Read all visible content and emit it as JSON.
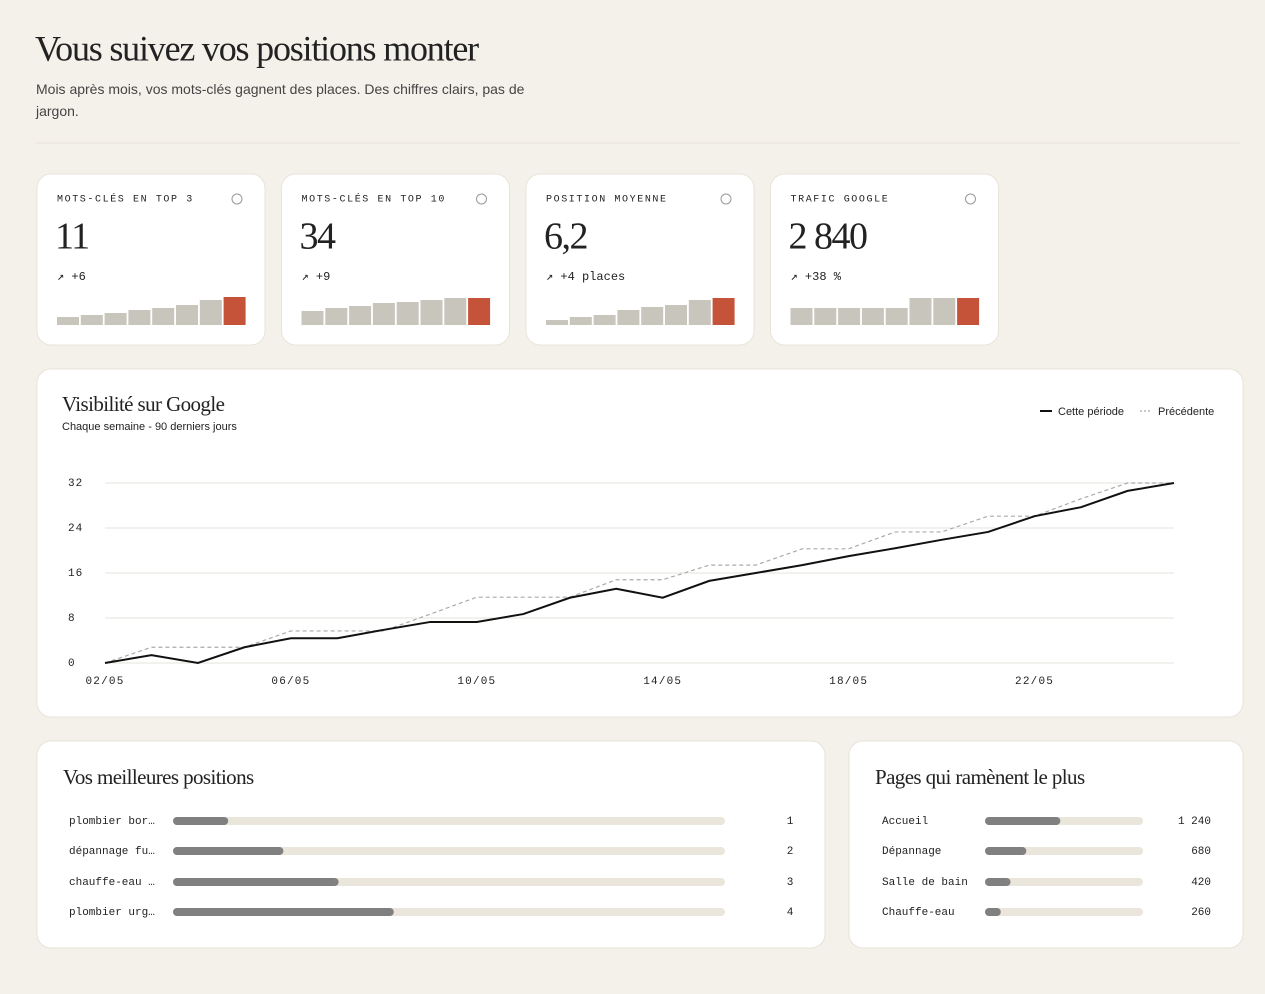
{
  "header": {
    "title": "Vous suivez vos positions monter",
    "subtitle": "Mois après mois, vos mots-clés gagnent des places. Des chiffres clairs, pas de jargon."
  },
  "kpis": [
    {
      "label": "MOTS-CLÉS EN TOP 3",
      "value": "11",
      "delta": "↗ +6",
      "spark": {
        "ylim": [
          0,
          30
        ],
        "values": [
          8,
          10,
          12,
          15,
          17,
          20,
          25,
          28
        ],
        "color": "#c8c5bd",
        "highlight": "#c4533a"
      }
    },
    {
      "label": "MOTS-CLÉS EN TOP 10",
      "value": "34",
      "delta": "↗ +9",
      "spark": {
        "ylim": [
          0,
          30
        ],
        "values": [
          14,
          17,
          19,
          22,
          23,
          25,
          27,
          27
        ],
        "color": "#c8c5bd",
        "highlight": "#c4533a"
      }
    },
    {
      "label": "POSITION MOYENNE",
      "value": "6,2",
      "delta": "↗ +4 places",
      "spark": {
        "ylim": [
          0,
          30
        ],
        "values": [
          5,
          8,
          10,
          15,
          18,
          20,
          25,
          27
        ],
        "color": "#c8c5bd",
        "highlight": "#c4533a"
      }
    },
    {
      "label": "TRAFIC GOOGLE",
      "value": "2 840",
      "delta": "↗ +38 %",
      "spark": {
        "ylim": [
          0,
          30
        ],
        "values": [
          17,
          17,
          17,
          17,
          17,
          27,
          27,
          27
        ],
        "color": "#c8c5bd",
        "highlight": "#c4533a"
      }
    }
  ],
  "chart_data": {
    "type": "line",
    "title": "Visibilité sur Google",
    "subtitle": "Chaque semaine - 90 derniers jours",
    "categories": [
      "02/05",
      null,
      null,
      null,
      "06/05",
      null,
      null,
      null,
      "10/05",
      null,
      null,
      null,
      "14/05",
      null,
      null,
      null,
      "18/05",
      null,
      null,
      null,
      "22/05",
      null,
      null,
      null
    ],
    "series": [
      {
        "name": "Cette période",
        "color": "#111111",
        "dashed": false,
        "values": [
          0,
          1.4,
          0,
          2.8,
          4.4,
          4.4,
          5.9,
          7.3,
          7.3,
          8.7,
          11.6,
          13.2,
          11.6,
          14.6,
          16.0,
          17.4,
          19.0,
          20.4,
          21.9,
          23.3,
          26.1,
          27.7,
          30.6,
          32
        ]
      },
      {
        "name": "Précédente",
        "color": "#aaaaaa",
        "dashed": true,
        "values": [
          0,
          2.8,
          2.8,
          2.8,
          5.7,
          5.7,
          5.7,
          8.7,
          11.7,
          11.7,
          11.7,
          14.8,
          14.8,
          17.4,
          17.4,
          20.3,
          20.3,
          23.3,
          23.3,
          26.1,
          26.1,
          29.2,
          32,
          32
        ]
      }
    ],
    "ylim": [
      0,
      32
    ],
    "yticks": [
      0,
      8,
      16,
      24,
      32
    ],
    "grid": true,
    "legend": "top-right"
  },
  "positions": {
    "title": "Vos meilleures positions",
    "xlim": [
      0,
      10
    ],
    "rows": [
      {
        "name": "plombier bor…",
        "value": 1
      },
      {
        "name": "dépannage fu…",
        "value": 2
      },
      {
        "name": "chauffe-eau …",
        "value": 3
      },
      {
        "name": "plombier urg…",
        "value": 4
      }
    ]
  },
  "pages": {
    "title": "Pages qui ramènent le plus",
    "xlim": [
      0,
      2600
    ],
    "rows": [
      {
        "name": "Accueil",
        "value": 1240,
        "value_label": "1 240"
      },
      {
        "name": "Dépannage",
        "value": 680
      },
      {
        "name": "Salle de bain",
        "value": 420
      },
      {
        "name": "Chauffe-eau",
        "value": 260
      }
    ]
  }
}
